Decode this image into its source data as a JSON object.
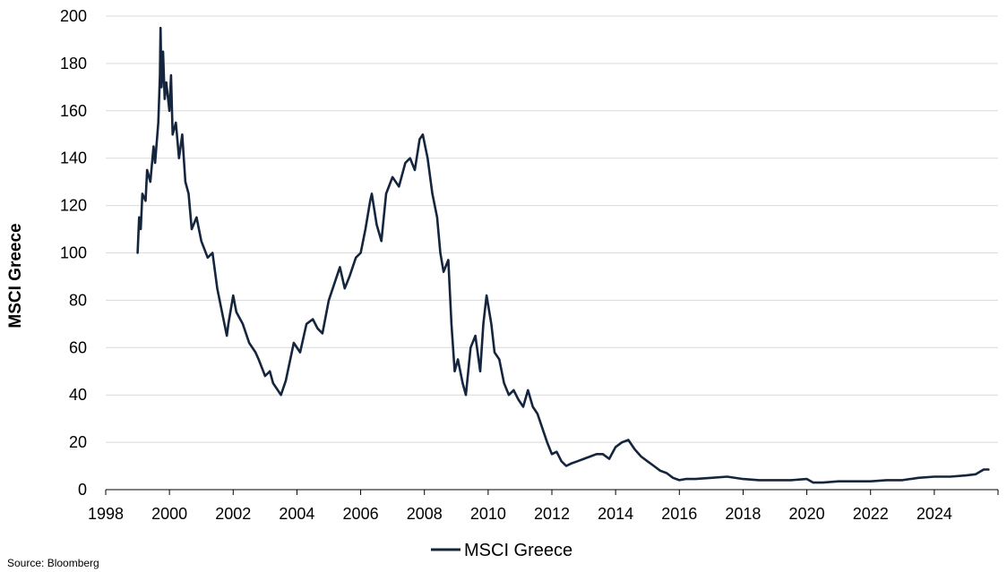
{
  "chart_data": {
    "type": "line",
    "title": "",
    "xlabel": "",
    "ylabel": "MSCI Greece",
    "xlim": [
      1998,
      2026
    ],
    "ylim": [
      0,
      200
    ],
    "x_ticks": [
      1998,
      2000,
      2002,
      2004,
      2006,
      2008,
      2010,
      2012,
      2014,
      2016,
      2018,
      2020,
      2022,
      2024
    ],
    "y_ticks": [
      0,
      20,
      40,
      60,
      80,
      100,
      120,
      140,
      160,
      180,
      200
    ],
    "grid": "horizontal",
    "legend_position": "bottom",
    "line_color": "#14253d",
    "series": [
      {
        "name": "MSCI Greece",
        "x": [
          1999.0,
          1999.05,
          1999.1,
          1999.15,
          1999.25,
          1999.3,
          1999.4,
          1999.5,
          1999.55,
          1999.65,
          1999.7,
          1999.72,
          1999.75,
          1999.8,
          1999.85,
          1999.9,
          2000.0,
          2000.05,
          2000.1,
          2000.2,
          2000.3,
          2000.4,
          2000.5,
          2000.6,
          2000.7,
          2000.85,
          2001.0,
          2001.2,
          2001.35,
          2001.5,
          2001.65,
          2001.8,
          2001.85,
          2002.0,
          2002.1,
          2002.3,
          2002.5,
          2002.7,
          2002.8,
          2003.0,
          2003.15,
          2003.25,
          2003.5,
          2003.65,
          2003.9,
          2004.1,
          2004.3,
          2004.5,
          2004.65,
          2004.8,
          2005.0,
          2005.2,
          2005.35,
          2005.5,
          2005.65,
          2005.85,
          2006.0,
          2006.15,
          2006.3,
          2006.35,
          2006.5,
          2006.65,
          2006.8,
          2007.0,
          2007.2,
          2007.4,
          2007.55,
          2007.7,
          2007.85,
          2007.95,
          2008.1,
          2008.25,
          2008.4,
          2008.5,
          2008.6,
          2008.75,
          2008.85,
          2008.95,
          2009.05,
          2009.2,
          2009.3,
          2009.45,
          2009.6,
          2009.75,
          2009.85,
          2009.95,
          2010.1,
          2010.2,
          2010.35,
          2010.5,
          2010.65,
          2010.8,
          2010.95,
          2011.1,
          2011.25,
          2011.4,
          2011.55,
          2011.7,
          2011.85,
          2012.0,
          2012.15,
          2012.3,
          2012.45,
          2012.6,
          2012.8,
          2013.0,
          2013.2,
          2013.4,
          2013.6,
          2013.8,
          2014.0,
          2014.2,
          2014.4,
          2014.6,
          2014.8,
          2015.0,
          2015.2,
          2015.4,
          2015.6,
          2015.8,
          2016.0,
          2016.2,
          2016.5,
          2017.0,
          2017.5,
          2018.0,
          2018.5,
          2019.0,
          2019.5,
          2020.0,
          2020.2,
          2020.5,
          2021.0,
          2021.5,
          2022.0,
          2022.5,
          2023.0,
          2023.5,
          2024.0,
          2024.5,
          2025.0,
          2025.3,
          2025.55,
          2025.7
        ],
        "values": [
          100,
          115,
          110,
          125,
          122,
          135,
          130,
          145,
          138,
          155,
          175,
          195,
          170,
          185,
          165,
          172,
          160,
          175,
          150,
          155,
          140,
          150,
          130,
          125,
          110,
          115,
          105,
          98,
          100,
          85,
          75,
          65,
          70,
          82,
          75,
          70,
          62,
          58,
          55,
          48,
          50,
          45,
          40,
          46,
          62,
          58,
          70,
          72,
          68,
          66,
          80,
          88,
          94,
          85,
          90,
          98,
          100,
          110,
          122,
          125,
          112,
          105,
          125,
          132,
          128,
          138,
          140,
          135,
          148,
          150,
          140,
          125,
          115,
          100,
          92,
          97,
          70,
          50,
          55,
          45,
          40,
          60,
          65,
          50,
          70,
          82,
          70,
          58,
          55,
          45,
          40,
          42,
          38,
          35,
          42,
          35,
          32,
          26,
          20,
          15,
          16,
          12,
          10,
          11,
          12,
          13,
          14,
          15,
          15,
          13,
          18,
          20,
          21,
          17,
          14,
          12,
          10,
          8,
          7,
          5,
          4,
          4.5,
          4.5,
          5,
          5.5,
          4.5,
          4,
          4,
          4,
          4.5,
          3,
          3,
          3.5,
          3.5,
          3.5,
          4,
          4,
          5,
          5.5,
          5.5,
          6,
          6.5,
          8.5,
          8.5
        ]
      }
    ],
    "source": "Source: Bloomberg"
  }
}
